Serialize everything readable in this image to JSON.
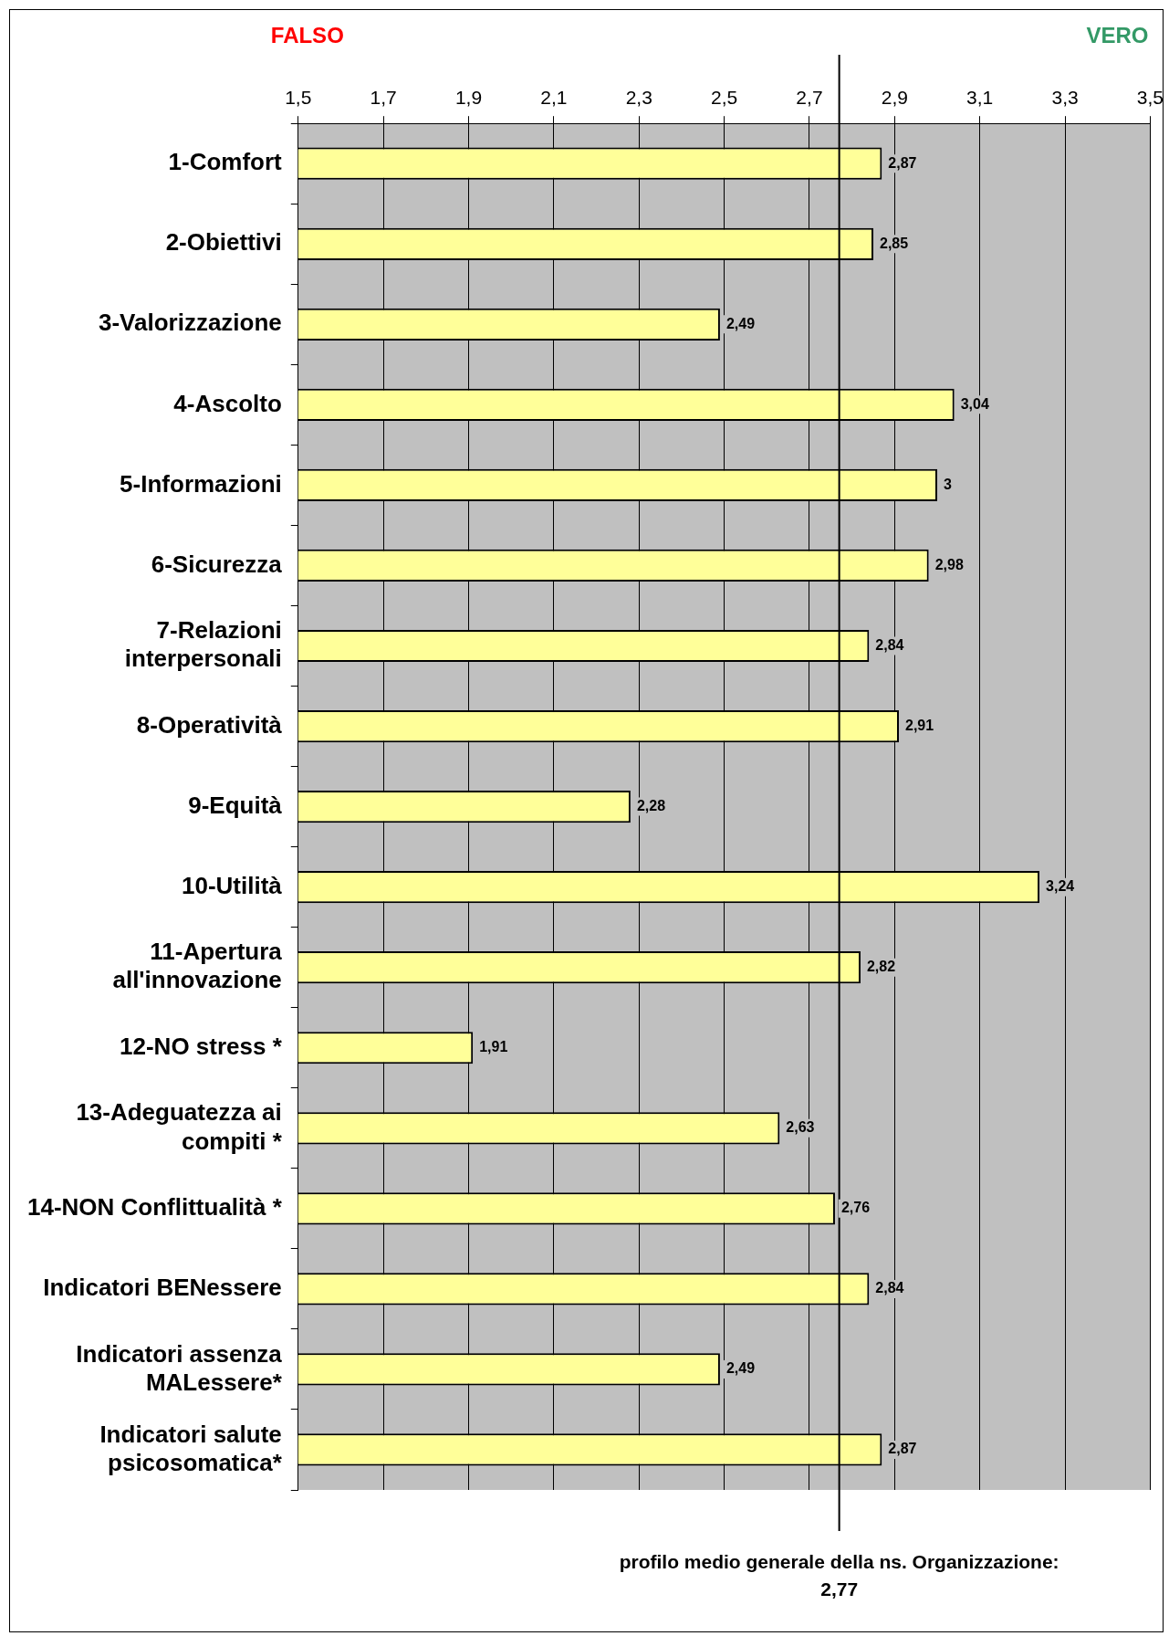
{
  "chart_data": {
    "type": "bar",
    "orientation": "horizontal",
    "categories": [
      "1-Comfort",
      "2-Obiettivi",
      "3-Valorizzazione",
      "4-Ascolto",
      "5-Informazioni",
      "6-Sicurezza",
      "7-Relazioni interpersonali",
      "8-Operatività",
      "9-Equità",
      "10-Utilità",
      "11-Apertura all'innovazione",
      "12-NO stress *",
      "13-Adeguatezza ai compiti *",
      "14-NON Conflittualità *",
      "Indicatori BENessere",
      "Indicatori assenza MALessere*",
      "Indicatori salute psicosomatica*"
    ],
    "values": [
      2.87,
      2.85,
      2.49,
      3.04,
      3,
      2.98,
      2.84,
      2.91,
      2.28,
      3.24,
      2.82,
      1.91,
      2.63,
      2.76,
      2.84,
      2.49,
      2.87
    ],
    "value_labels": [
      "2,87",
      "2,85",
      "2,49",
      "3,04",
      "3",
      "2,98",
      "2,84",
      "2,91",
      "2,28",
      "3,24",
      "2,82",
      "1,91",
      "2,63",
      "2,76",
      "2,84",
      "2,49",
      "2,87"
    ],
    "color": "#ffff99",
    "xlim": [
      1.5,
      3.5
    ],
    "xticks": [
      {
        "value": 1.5,
        "label": "1,5"
      },
      {
        "value": 1.7,
        "label": "1,7"
      },
      {
        "value": 1.9,
        "label": "1,9"
      },
      {
        "value": 2.1,
        "label": "2,1"
      },
      {
        "value": 2.3,
        "label": "2,3"
      },
      {
        "value": 2.5,
        "label": "2,5"
      },
      {
        "value": 2.7,
        "label": "2,7"
      },
      {
        "value": 2.9,
        "label": "2,9"
      },
      {
        "value": 3.1,
        "label": "3,1"
      },
      {
        "value": 3.3,
        "label": "3,3"
      },
      {
        "value": 3.5,
        "label": "3,5"
      }
    ],
    "grid": "x",
    "legend": false,
    "ref_lines": [
      {
        "axis": "x",
        "value": 2.77,
        "label": "profilo medio generale della ns. Organizzazione: 2,77",
        "color": "#000000"
      }
    ],
    "annotations": [
      "FALSO",
      "VERO"
    ]
  }
}
